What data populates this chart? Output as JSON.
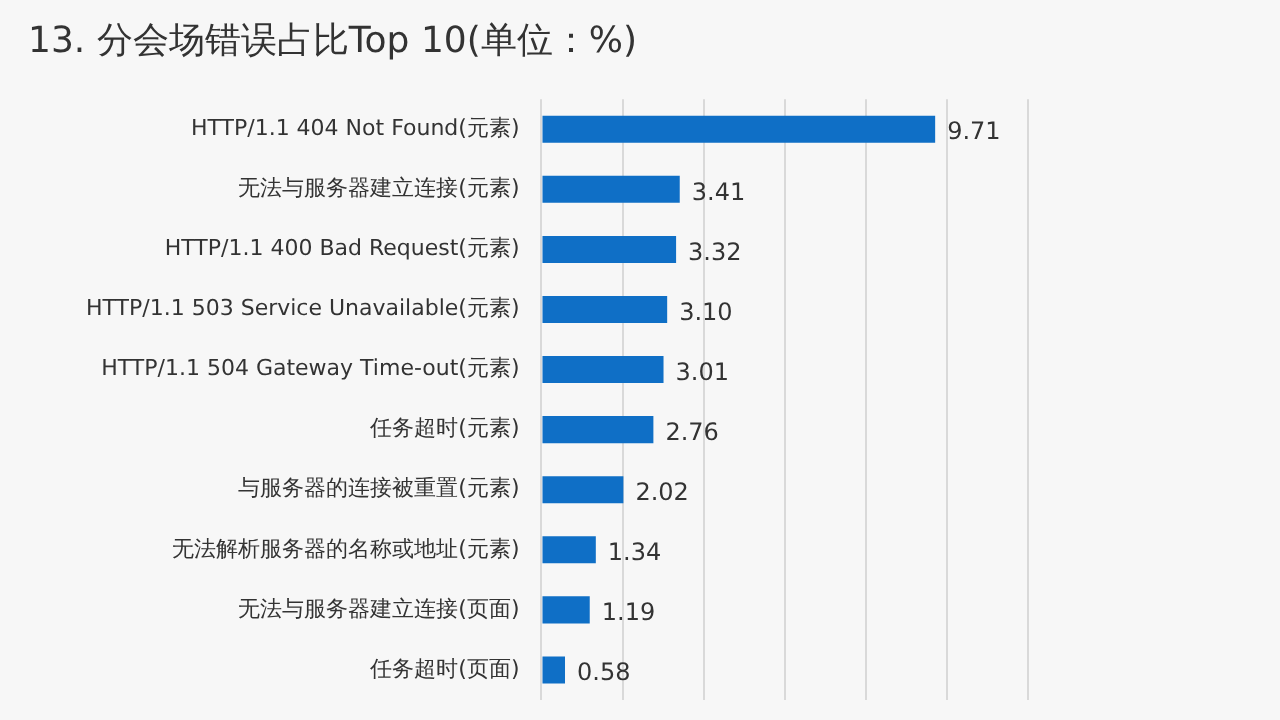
{
  "chart_data": {
    "type": "bar",
    "orientation": "horizontal",
    "title": "13. 分会场错误占比Top 10(单位：%)",
    "categories": [
      "HTTP/1.1 404 Not Found(元素)",
      "无法与服务器建立连接(元素)",
      "HTTP/1.1 400 Bad Request(元素)",
      "HTTP/1.1 503 Service Unavailable(元素)",
      "HTTP/1.1 504 Gateway Time-out(元素)",
      "任务超时(元素)",
      "与服务器的连接被重置(元素)",
      "无法解析服务器的名称或地址(元素)",
      "无法与服务器建立连接(页面)",
      "任务超时(页面)"
    ],
    "values": [
      9.71,
      3.41,
      3.32,
      3.1,
      3.01,
      2.76,
      2.02,
      1.34,
      1.19,
      0.58
    ],
    "color": "#0f6fc6",
    "xlim": [
      0,
      12
    ],
    "xticks": [
      {
        "value": 0,
        "label": null
      },
      {
        "value": 2,
        "label": null
      },
      {
        "value": 4,
        "label": null
      },
      {
        "value": 6,
        "label": null
      },
      {
        "value": 8,
        "label": null
      },
      {
        "value": 10,
        "label": null
      },
      {
        "value": 12,
        "label": null
      }
    ],
    "value_labels": [
      "9.71",
      "3.41",
      "3.32",
      "3.10",
      "3.01",
      "2.76",
      "2.02",
      "1.34",
      "1.19",
      "0.58"
    ],
    "tick_labels": "y",
    "grid": "x",
    "legend": false
  }
}
